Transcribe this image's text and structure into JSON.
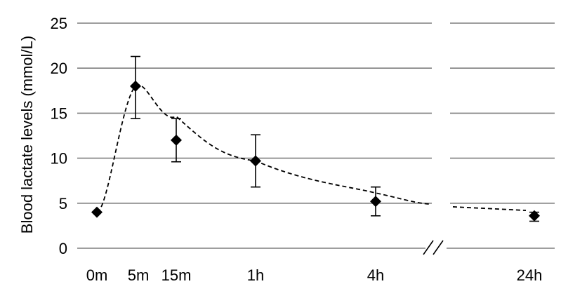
{
  "chart_data": {
    "type": "scatter",
    "title": "",
    "xlabel": "",
    "ylabel": "Blood lactate levels (mmol/L)",
    "ylim": [
      0,
      25
    ],
    "yticks": [
      0,
      5,
      10,
      15,
      20,
      25
    ],
    "grid": true,
    "x_axis_break": true,
    "categories": [
      "0m",
      "5m",
      "15m",
      "1h",
      "4h",
      "24h"
    ],
    "series": [
      {
        "values": [
          4.0,
          18.0,
          12.0,
          9.7,
          5.2,
          3.6
        ],
        "error_upper": [
          null,
          21.3,
          14.4,
          12.6,
          6.8,
          4.0
        ],
        "error_lower": [
          null,
          14.4,
          9.6,
          6.8,
          3.6,
          3.0
        ],
        "marker": "diamond",
        "trendline": "dashed"
      }
    ],
    "colors": {
      "grid": "#7f7f7f",
      "marker": "#000000",
      "trendline": "#000000"
    }
  }
}
